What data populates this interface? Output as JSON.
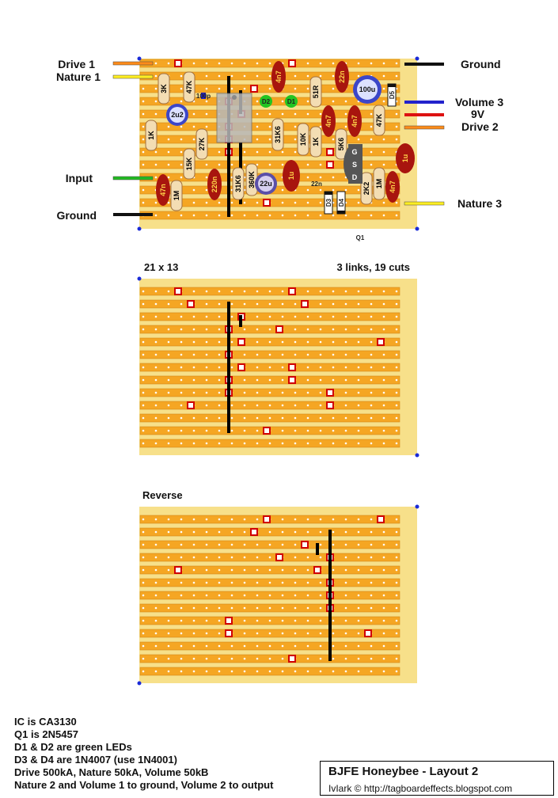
{
  "board_main": {
    "left_labels": [
      "Drive 1",
      "Nature 1",
      "Input",
      "Ground"
    ],
    "right_labels": [
      "Ground",
      "Volume 3",
      "9V",
      "Drive 2",
      "Nature 3"
    ],
    "transistor_label": "Q1",
    "transistor_pins": [
      "G",
      "S",
      "D"
    ],
    "components": {
      "r_3k": "3K",
      "r_47k_a": "47K",
      "r_1k_a": "1K",
      "r_27k": "27K",
      "r_15k": "15K",
      "r_1m_a": "1M",
      "c_47n": "47n",
      "c_220n": "220n",
      "r_31k6_a": "31K6",
      "r_360k": "360K",
      "c_22u": "22u",
      "c_2u2": "2u2",
      "c_100p": "100p",
      "c_4n7_a": "4n7",
      "r_31k6_b": "31K6",
      "c_1u_a": "1u",
      "r_10k": "10K",
      "r_51r": "51R",
      "r_1k_b": "1K",
      "c_22n_a": "22n",
      "c_22n_b": "22n",
      "c_4n7_b": "4n7",
      "c_4n7_c": "4n7",
      "r_5k6": "5K6",
      "r_47k_b": "47K",
      "c_100u": "100u",
      "d5": "D5",
      "c_1u_b": "1u",
      "r_2k2": "2K2",
      "r_1m_b": "1M",
      "c_4n7_d": "4n7",
      "d1": "D1",
      "d2": "D2",
      "d3": "D3",
      "d4": "D4"
    }
  },
  "board_cuts": {
    "size_label": "21 x 13",
    "summary_label": "3 links, 19 cuts"
  },
  "board_reverse": {
    "label": "Reverse"
  },
  "notes": [
    "IC is CA3130",
    "Q1 is 2N5457",
    "D1 & D2 are green LEDs",
    "D3 & D4 are 1N4007 (use 1N4001)",
    "Drive 500kA, Nature 50kA, Volume 50kB",
    "Nature 2 and Volume 1 to ground, Volume 2 to output"
  ],
  "title": "BJFE Honeybee - Layout 2",
  "credit": "IvIark © http://tagboardeffects.blogspot.com",
  "colors": {
    "board": "#f5a623",
    "strip": "#e8941a",
    "hole": "#ffffff",
    "cut": "#d00000",
    "link": "#000000",
    "resistor": "#f3ddb3",
    "film_cap": "#a8150e",
    "ecap": "#3c46c8",
    "led": "#22c422",
    "ic": "#b0b0b0",
    "jfet": "#555555"
  }
}
